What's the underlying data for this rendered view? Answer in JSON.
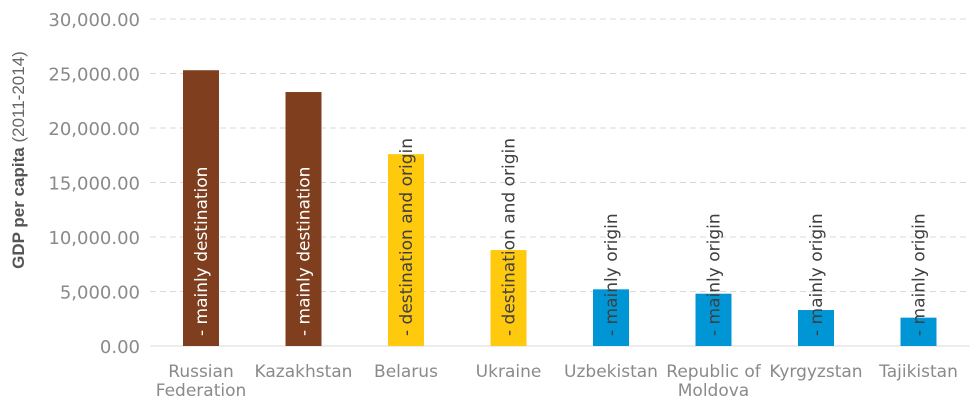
{
  "chart_data": {
    "type": "bar",
    "ylabel_bold": "GDP per capita",
    "ylabel_rest": " (2011-2014)",
    "ylim": [
      0,
      30000
    ],
    "yticks": [
      "0.00",
      "5,000.00",
      "10,000.00",
      "15,000.00",
      "20,000.00",
      "25,000.00",
      "30,000.00"
    ],
    "yticks_values": [
      0,
      5000,
      10000,
      15000,
      20000,
      25000,
      30000
    ],
    "grid": true,
    "categories": [
      [
        "Russian",
        "Federation"
      ],
      [
        "Kazakhstan"
      ],
      [
        "Belarus"
      ],
      [
        "Ukraine"
      ],
      [
        "Uzbekistan"
      ],
      [
        "Republic of",
        "Moldova"
      ],
      [
        "Kyrgyzstan"
      ],
      [
        "Tajikistan"
      ]
    ],
    "values": [
      25300,
      23300,
      17600,
      8800,
      5200,
      4800,
      3300,
      2600
    ],
    "bar_labels": [
      "- mainly destination",
      "- mainly destination",
      "- destination and origin",
      "- destination and origin",
      "- mainly origin",
      "- mainly origin",
      "- mainly origin",
      "- mainly origin"
    ],
    "colors": [
      "#7f3f1f",
      "#7f3f1f",
      "#ffc90e",
      "#ffc90e",
      "#0096d6",
      "#0096d6",
      "#0096d6",
      "#0096d6"
    ],
    "label_colors": [
      "#ffffff",
      "#ffffff",
      "#404040",
      "#404040",
      "#404040",
      "#404040",
      "#404040",
      "#404040"
    ]
  }
}
